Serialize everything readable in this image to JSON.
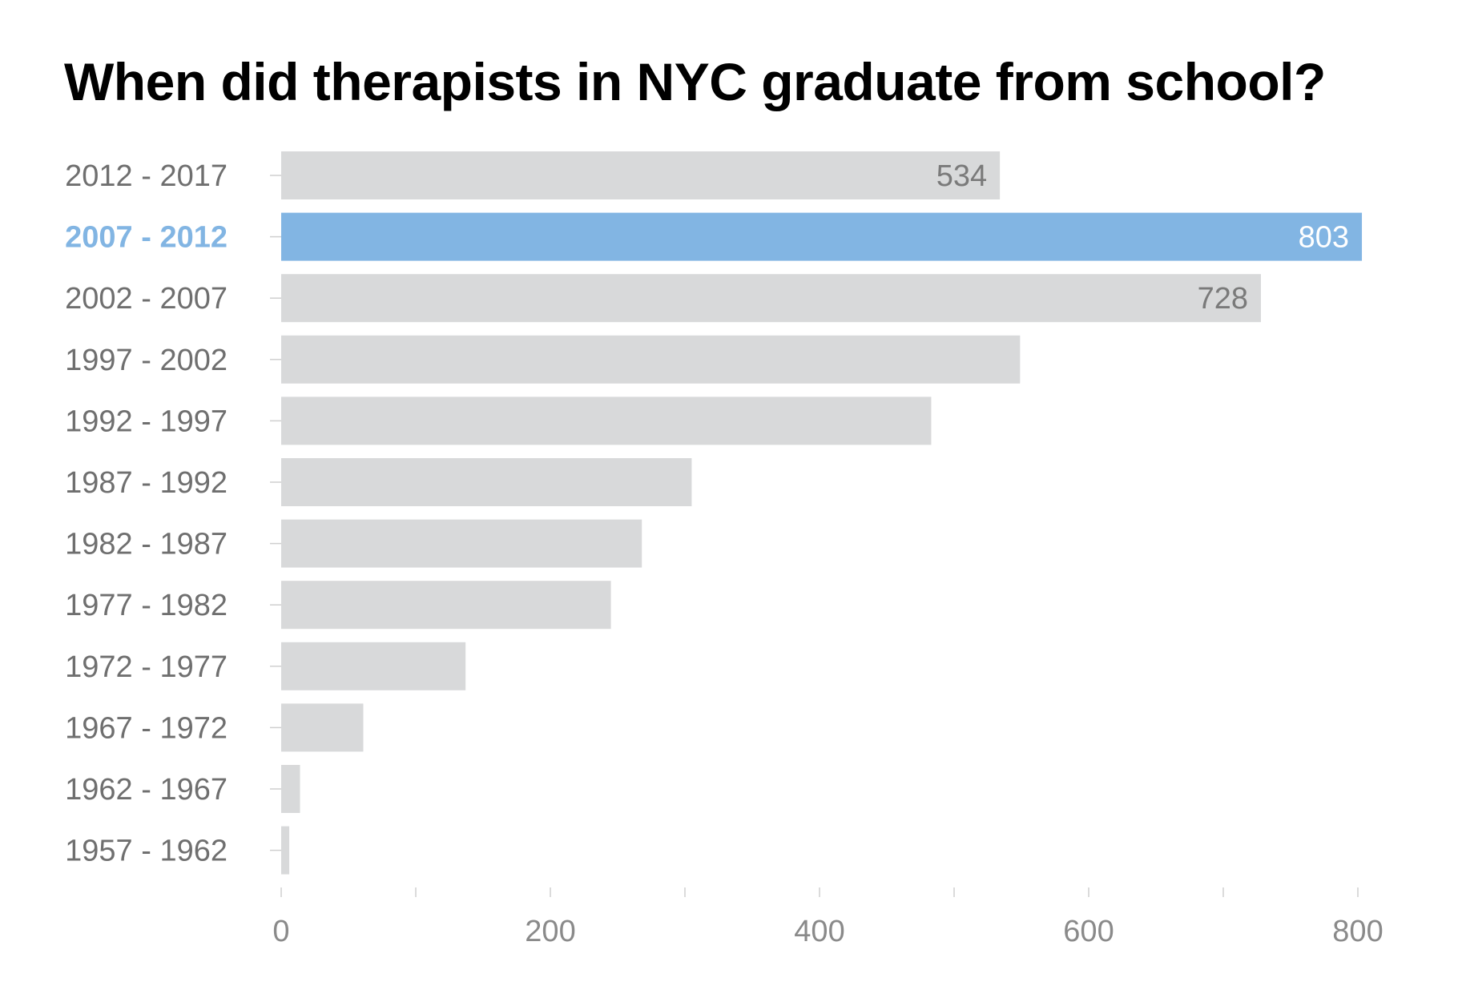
{
  "chart_data": {
    "type": "bar",
    "orientation": "horizontal",
    "title": "When did therapists in NYC graduate from school?",
    "xlabel": "",
    "ylabel": "",
    "categories": [
      "2012 - 2017",
      "2007 - 2012",
      "2002 - 2007",
      "1997 - 2002",
      "1992 - 1997",
      "1987 - 1992",
      "1982 - 1987",
      "1977 - 1982",
      "1972 - 1977",
      "1967 - 1972",
      "1962 - 1967",
      "1957 - 1962"
    ],
    "values": [
      534,
      803,
      728,
      549,
      483,
      305,
      268,
      245,
      137,
      61,
      14,
      6
    ],
    "data_labels": [
      {
        "category": "2012 - 2017",
        "text": "534"
      },
      {
        "category": "2007 - 2012",
        "text": "803"
      },
      {
        "category": "2002 - 2007",
        "text": "728"
      }
    ],
    "highlighted_category": "2007 - 2012",
    "xlim": [
      0,
      800
    ],
    "x_ticks": [
      0,
      200,
      400,
      600,
      800
    ],
    "x_minor_ticks": [
      100,
      300,
      500,
      700
    ],
    "grid": false,
    "colors": {
      "bar": "#d8d9da",
      "highlight": "#82b5e3",
      "category_text": "#6f6f6f",
      "value_text": "#7a7a7a",
      "highlight_value_text": "#ffffff",
      "tick_text": "#8a8a8a",
      "tick_mark": "#cfcfcf"
    }
  }
}
